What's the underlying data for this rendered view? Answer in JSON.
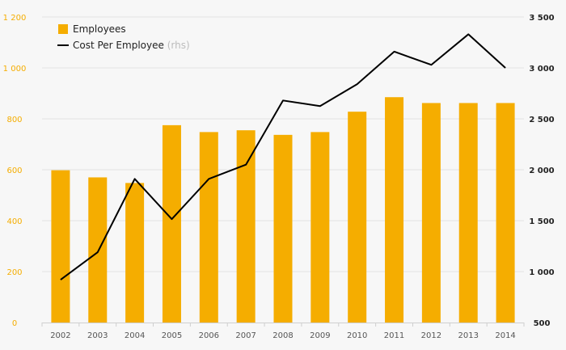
{
  "chart_data": {
    "type": "bar",
    "categories": [
      "2002",
      "2003",
      "2004",
      "2005",
      "2006",
      "2007",
      "2008",
      "2009",
      "2010",
      "2011",
      "2012",
      "2013",
      "2014"
    ],
    "series": [
      {
        "name": "Employees",
        "type": "bar",
        "axis": "left",
        "color": "#f5ad00",
        "values": [
          598,
          570,
          548,
          775,
          748,
          755,
          737,
          748,
          828,
          885,
          862,
          862,
          862
        ]
      },
      {
        "name": "Cost Per Employee",
        "name_note": "(rhs)",
        "type": "line",
        "axis": "right",
        "color": "#000000",
        "values": [
          920,
          1190,
          1910,
          1515,
          1910,
          2050,
          2680,
          2625,
          2840,
          3160,
          3030,
          3330,
          3000
        ]
      }
    ],
    "y_left": {
      "min": 0,
      "max": 1200,
      "ticks": [
        0,
        200,
        400,
        600,
        800,
        1000,
        1200
      ],
      "tick_labels": [
        "0",
        "200",
        "400",
        "600",
        "800",
        "1 000",
        "1 200"
      ]
    },
    "y_right": {
      "min": 500,
      "max": 3500,
      "ticks": [
        500,
        1000,
        1500,
        2000,
        2500,
        3000,
        3500
      ],
      "tick_labels": [
        "500",
        "1 000",
        "1 500",
        "2 000",
        "2 500",
        "3 000",
        "3 500"
      ]
    },
    "legend": {
      "position": "top-left"
    },
    "grid": true
  }
}
